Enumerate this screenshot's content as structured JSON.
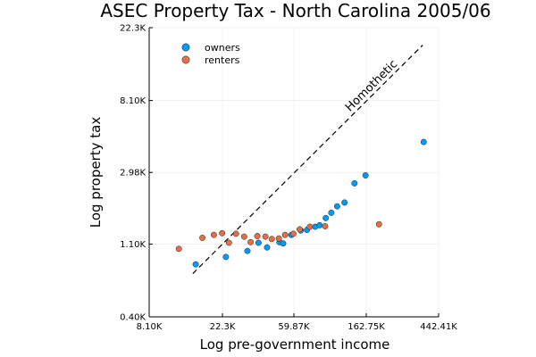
{
  "chart_data": {
    "type": "scatter",
    "title": "ASEC Property Tax - North Carolina 2005/06",
    "xlabel": "Log pre-government income",
    "ylabel": "Log property tax",
    "x_scale": "log",
    "y_scale": "log",
    "xlim": [
      8100,
      442410
    ],
    "ylim": [
      400,
      22300
    ],
    "x_ticks": [
      8100,
      22300,
      59870,
      162750,
      442410
    ],
    "x_tick_labels": [
      "8.10K",
      "22.3K",
      "59.87K",
      "162.75K",
      "442.41K"
    ],
    "y_ticks": [
      400,
      1100,
      2980,
      8100,
      22300
    ],
    "y_tick_labels": [
      "0.40K",
      "1.10K",
      "2.98K",
      "8.10K",
      "22.3K"
    ],
    "grid": true,
    "legend_position": "top-left",
    "series": [
      {
        "name": "owners",
        "color": "#009AFA",
        "points": [
          {
            "x": 15400,
            "y": 830
          },
          {
            "x": 23400,
            "y": 920
          },
          {
            "x": 31500,
            "y": 1000
          },
          {
            "x": 36700,
            "y": 1120
          },
          {
            "x": 41300,
            "y": 1050
          },
          {
            "x": 49000,
            "y": 1130
          },
          {
            "x": 51600,
            "y": 1110
          },
          {
            "x": 57800,
            "y": 1250
          },
          {
            "x": 65800,
            "y": 1330
          },
          {
            "x": 71700,
            "y": 1340
          },
          {
            "x": 80300,
            "y": 1400
          },
          {
            "x": 85400,
            "y": 1430
          },
          {
            "x": 93000,
            "y": 1580
          },
          {
            "x": 100400,
            "y": 1700
          },
          {
            "x": 108800,
            "y": 1860
          },
          {
            "x": 120500,
            "y": 1960
          },
          {
            "x": 138300,
            "y": 2560
          },
          {
            "x": 161000,
            "y": 2860
          },
          {
            "x": 360000,
            "y": 4550
          }
        ]
      },
      {
        "name": "renters",
        "color": "#E26F46",
        "points": [
          {
            "x": 12200,
            "y": 1030
          },
          {
            "x": 16900,
            "y": 1200
          },
          {
            "x": 19800,
            "y": 1250
          },
          {
            "x": 22200,
            "y": 1280
          },
          {
            "x": 24400,
            "y": 1120
          },
          {
            "x": 26900,
            "y": 1270
          },
          {
            "x": 30100,
            "y": 1220
          },
          {
            "x": 32900,
            "y": 1130
          },
          {
            "x": 36100,
            "y": 1230
          },
          {
            "x": 40400,
            "y": 1220
          },
          {
            "x": 44100,
            "y": 1180
          },
          {
            "x": 48600,
            "y": 1190
          },
          {
            "x": 53000,
            "y": 1250
          },
          {
            "x": 59400,
            "y": 1270
          },
          {
            "x": 64800,
            "y": 1350
          },
          {
            "x": 74600,
            "y": 1400
          },
          {
            "x": 92100,
            "y": 1410
          },
          {
            "x": 194000,
            "y": 1450
          }
        ]
      }
    ],
    "reference_line": {
      "label": "Homothetic",
      "style": "dashed",
      "color": "#000000",
      "from": {
        "x": 14800,
        "y": 730
      },
      "to": {
        "x": 355000,
        "y": 17500
      }
    }
  }
}
